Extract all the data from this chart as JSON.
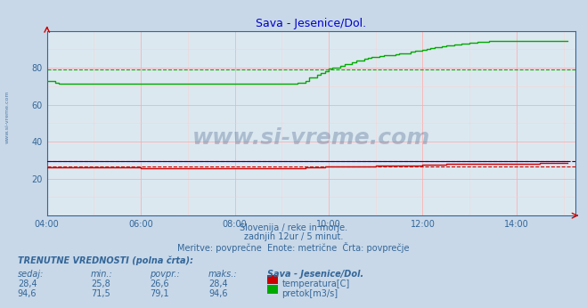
{
  "title": "Sava - Jesenice/Dol.",
  "title_color": "#0000cc",
  "bg_color": "#c8d8e8",
  "plot_bg_color": "#dce8f0",
  "grid_color_major": "#ffaaaa",
  "grid_color_minor": "#ffcccc",
  "xlim_hours": [
    4.0,
    15.25
  ],
  "ylim": [
    0,
    100
  ],
  "yticks": [
    20,
    40,
    60,
    80
  ],
  "xtick_labels": [
    "04:00",
    "06:00",
    "08:00",
    "10:00",
    "12:00",
    "14:00"
  ],
  "xtick_hours": [
    4.0,
    6.0,
    8.0,
    10.0,
    12.0,
    14.0
  ],
  "temp_avg": 26.6,
  "flow_avg": 79.1,
  "temp_color": "#cc0000",
  "flow_color": "#00aa00",
  "height_color": "#0000bb",
  "watermark": "www.si-vreme.com",
  "sub_text1": "Slovenija / reke in morje.",
  "sub_text2": "zadnjih 12ur / 5 minut.",
  "sub_text3": "Meritve: povprečne  Enote: metrične  Črta: povprečje",
  "footer_title": "TRENUTNE VREDNOSTI (polna črta):",
  "col_headers": [
    "sedaj:",
    "min.:",
    "povpr.:",
    "maks.:",
    "Sava - Jesenice/Dol."
  ],
  "temp_row": [
    "28,4",
    "25,8",
    "26,6",
    "28,4",
    "temperatura[C]"
  ],
  "flow_row": [
    "94,6",
    "71,5",
    "79,1",
    "94,6",
    "pretok[m3/s]"
  ],
  "temp_data_hours": [
    4.0,
    4.083,
    4.167,
    4.25,
    4.333,
    4.417,
    4.5,
    4.583,
    4.667,
    4.75,
    4.833,
    4.917,
    5.0,
    5.083,
    5.167,
    5.25,
    5.333,
    5.417,
    5.5,
    5.583,
    5.667,
    5.75,
    5.833,
    5.917,
    6.0,
    6.083,
    6.167,
    6.25,
    6.333,
    6.417,
    6.5,
    6.583,
    6.667,
    6.75,
    6.833,
    6.917,
    7.0,
    7.083,
    7.167,
    7.25,
    7.333,
    7.417,
    7.5,
    7.583,
    7.667,
    7.75,
    7.833,
    7.917,
    8.0,
    8.083,
    8.167,
    8.25,
    8.333,
    8.417,
    8.5,
    8.583,
    8.667,
    8.75,
    8.833,
    8.917,
    9.0,
    9.083,
    9.167,
    9.25,
    9.333,
    9.417,
    9.5,
    9.583,
    9.667,
    9.75,
    9.833,
    9.917,
    10.0,
    10.083,
    10.167,
    10.25,
    10.333,
    10.417,
    10.5,
    10.583,
    10.667,
    10.75,
    10.833,
    10.917,
    11.0,
    11.083,
    11.167,
    11.25,
    11.333,
    11.417,
    11.5,
    11.583,
    11.667,
    11.75,
    11.833,
    11.917,
    12.0,
    12.083,
    12.167,
    12.25,
    12.333,
    12.417,
    12.5,
    12.583,
    12.667,
    12.75,
    12.833,
    12.917,
    13.0,
    13.083,
    13.167,
    13.25,
    13.333,
    13.417,
    13.5,
    13.583,
    13.667,
    13.75,
    13.833,
    13.917,
    14.0,
    14.083,
    14.167,
    14.25,
    14.333,
    14.417,
    14.5,
    14.583,
    14.667,
    14.75,
    14.833,
    14.917,
    15.0,
    15.083
  ],
  "temp_data_vals": [
    25.9,
    25.9,
    25.9,
    25.9,
    25.9,
    25.9,
    25.9,
    25.9,
    25.9,
    25.9,
    25.9,
    25.9,
    25.9,
    25.9,
    25.9,
    25.9,
    25.9,
    25.9,
    25.9,
    25.9,
    25.9,
    25.9,
    25.9,
    25.9,
    25.8,
    25.8,
    25.8,
    25.8,
    25.8,
    25.8,
    25.8,
    25.8,
    25.8,
    25.8,
    25.8,
    25.8,
    25.8,
    25.8,
    25.8,
    25.8,
    25.8,
    25.8,
    25.8,
    25.8,
    25.8,
    25.8,
    25.8,
    25.8,
    25.8,
    25.8,
    25.8,
    25.8,
    25.8,
    25.8,
    25.8,
    25.8,
    25.8,
    25.8,
    25.8,
    25.8,
    25.8,
    25.8,
    25.8,
    25.8,
    25.8,
    25.8,
    26.0,
    26.0,
    26.0,
    26.0,
    26.0,
    26.5,
    26.8,
    26.8,
    26.8,
    26.8,
    26.8,
    26.8,
    26.8,
    26.8,
    26.8,
    26.8,
    26.8,
    26.8,
    27.0,
    27.0,
    27.0,
    27.0,
    27.0,
    27.0,
    27.0,
    27.0,
    27.0,
    27.0,
    27.0,
    27.0,
    27.5,
    27.5,
    27.5,
    27.5,
    27.5,
    27.5,
    27.8,
    27.8,
    27.8,
    27.8,
    27.8,
    27.8,
    28.0,
    28.0,
    28.0,
    28.0,
    28.0,
    28.0,
    28.0,
    28.0,
    28.0,
    28.0,
    28.0,
    28.0,
    28.2,
    28.2,
    28.2,
    28.2,
    28.2,
    28.2,
    28.4,
    28.4,
    28.4,
    28.4,
    28.4,
    28.4,
    28.4,
    28.4
  ],
  "flow_data_hours": [
    4.0,
    4.083,
    4.167,
    4.25,
    4.333,
    4.417,
    4.5,
    4.583,
    4.667,
    4.75,
    4.833,
    4.917,
    5.0,
    5.083,
    5.167,
    5.25,
    5.333,
    5.417,
    5.5,
    5.583,
    5.667,
    5.75,
    5.833,
    5.917,
    6.0,
    6.083,
    6.167,
    6.25,
    6.333,
    6.417,
    6.5,
    6.583,
    6.667,
    6.75,
    6.833,
    6.917,
    7.0,
    7.083,
    7.167,
    7.25,
    7.333,
    7.417,
    7.5,
    7.583,
    7.667,
    7.75,
    7.833,
    7.917,
    8.0,
    8.083,
    8.167,
    8.25,
    8.333,
    8.417,
    8.5,
    8.583,
    8.667,
    8.75,
    8.833,
    8.917,
    9.0,
    9.083,
    9.167,
    9.25,
    9.333,
    9.417,
    9.5,
    9.583,
    9.667,
    9.75,
    9.833,
    9.917,
    10.0,
    10.083,
    10.167,
    10.25,
    10.333,
    10.417,
    10.5,
    10.583,
    10.667,
    10.75,
    10.833,
    10.917,
    11.0,
    11.083,
    11.167,
    11.25,
    11.333,
    11.417,
    11.5,
    11.583,
    11.667,
    11.75,
    11.833,
    11.917,
    12.0,
    12.083,
    12.167,
    12.25,
    12.333,
    12.417,
    12.5,
    12.583,
    12.667,
    12.75,
    12.833,
    12.917,
    13.0,
    13.083,
    13.167,
    13.25,
    13.333,
    13.417,
    13.5,
    13.583,
    13.667,
    13.75,
    13.833,
    13.917,
    14.0,
    14.083,
    14.167,
    14.25,
    14.333,
    14.417,
    14.5,
    14.583,
    14.667,
    14.75,
    14.833,
    14.917,
    15.0,
    15.083
  ],
  "flow_data_vals": [
    73.0,
    73.0,
    72.0,
    71.5,
    71.5,
    71.5,
    71.5,
    71.5,
    71.5,
    71.5,
    71.5,
    71.5,
    71.5,
    71.5,
    71.5,
    71.5,
    71.5,
    71.5,
    71.5,
    71.5,
    71.5,
    71.5,
    71.5,
    71.5,
    71.5,
    71.5,
    71.5,
    71.5,
    71.5,
    71.5,
    71.5,
    71.5,
    71.5,
    71.5,
    71.5,
    71.5,
    71.5,
    71.5,
    71.5,
    71.5,
    71.5,
    71.5,
    71.5,
    71.5,
    71.5,
    71.5,
    71.5,
    71.5,
    71.5,
    71.5,
    71.5,
    71.5,
    71.5,
    71.5,
    71.5,
    71.5,
    71.5,
    71.5,
    71.5,
    71.5,
    71.5,
    71.5,
    71.5,
    71.5,
    72.0,
    72.0,
    73.0,
    75.0,
    75.0,
    76.0,
    77.0,
    78.0,
    79.5,
    80.0,
    80.0,
    81.0,
    82.0,
    82.0,
    83.0,
    84.0,
    84.0,
    85.0,
    85.5,
    86.0,
    86.0,
    86.5,
    87.0,
    87.0,
    87.0,
    87.5,
    88.0,
    88.0,
    88.0,
    88.5,
    89.0,
    89.0,
    89.5,
    90.0,
    90.5,
    91.0,
    91.0,
    91.5,
    92.0,
    92.0,
    92.5,
    92.5,
    93.0,
    93.0,
    93.5,
    93.5,
    94.0,
    94.0,
    94.0,
    94.5,
    94.5,
    94.5,
    94.6,
    94.6,
    94.6,
    94.6,
    94.6,
    94.6,
    94.6,
    94.6,
    94.6,
    94.6,
    94.6,
    94.6,
    94.6,
    94.6,
    94.6,
    94.6,
    94.6,
    94.6
  ],
  "height_data_vals": [
    29.5,
    29.5,
    29.5,
    29.5,
    29.5,
    29.5,
    29.5,
    29.5,
    29.5,
    29.5,
    29.5,
    29.5,
    29.5,
    29.5,
    29.5,
    29.5,
    29.5,
    29.5,
    29.5,
    29.5,
    29.5,
    29.5,
    29.5,
    29.5,
    29.5,
    29.5,
    29.5,
    29.5,
    29.5,
    29.5,
    29.5,
    29.5,
    29.5,
    29.5,
    29.5,
    29.5,
    29.5,
    29.5,
    29.5,
    29.5,
    29.5,
    29.5,
    29.5,
    29.5,
    29.5,
    29.5,
    29.5,
    29.5,
    29.5,
    29.5,
    29.5,
    29.5,
    29.5,
    29.5,
    29.5,
    29.5,
    29.5,
    29.5,
    29.5,
    29.5,
    29.5,
    29.5,
    29.5,
    29.5,
    29.5,
    29.5,
    29.5,
    29.5,
    29.5,
    29.5,
    29.5,
    29.5,
    29.5,
    29.5,
    29.5,
    29.5,
    29.5,
    29.5,
    29.5,
    29.5,
    29.5,
    29.5,
    29.5,
    29.5,
    29.5,
    29.5,
    29.5,
    29.5,
    29.5,
    29.5,
    29.5,
    29.5,
    29.5,
    29.5,
    29.5,
    29.5,
    29.5,
    29.5,
    29.5,
    29.5,
    29.5,
    29.5,
    29.5,
    29.5,
    29.5,
    29.5,
    29.5,
    29.5,
    29.5,
    29.5,
    29.5,
    29.5,
    29.5,
    29.5,
    29.5,
    29.5,
    29.5,
    29.5,
    29.5,
    29.5,
    29.5,
    29.5,
    29.5,
    29.5,
    29.5,
    29.5,
    29.5,
    29.5,
    29.5,
    29.5,
    29.5,
    29.5,
    29.5,
    29.5
  ]
}
